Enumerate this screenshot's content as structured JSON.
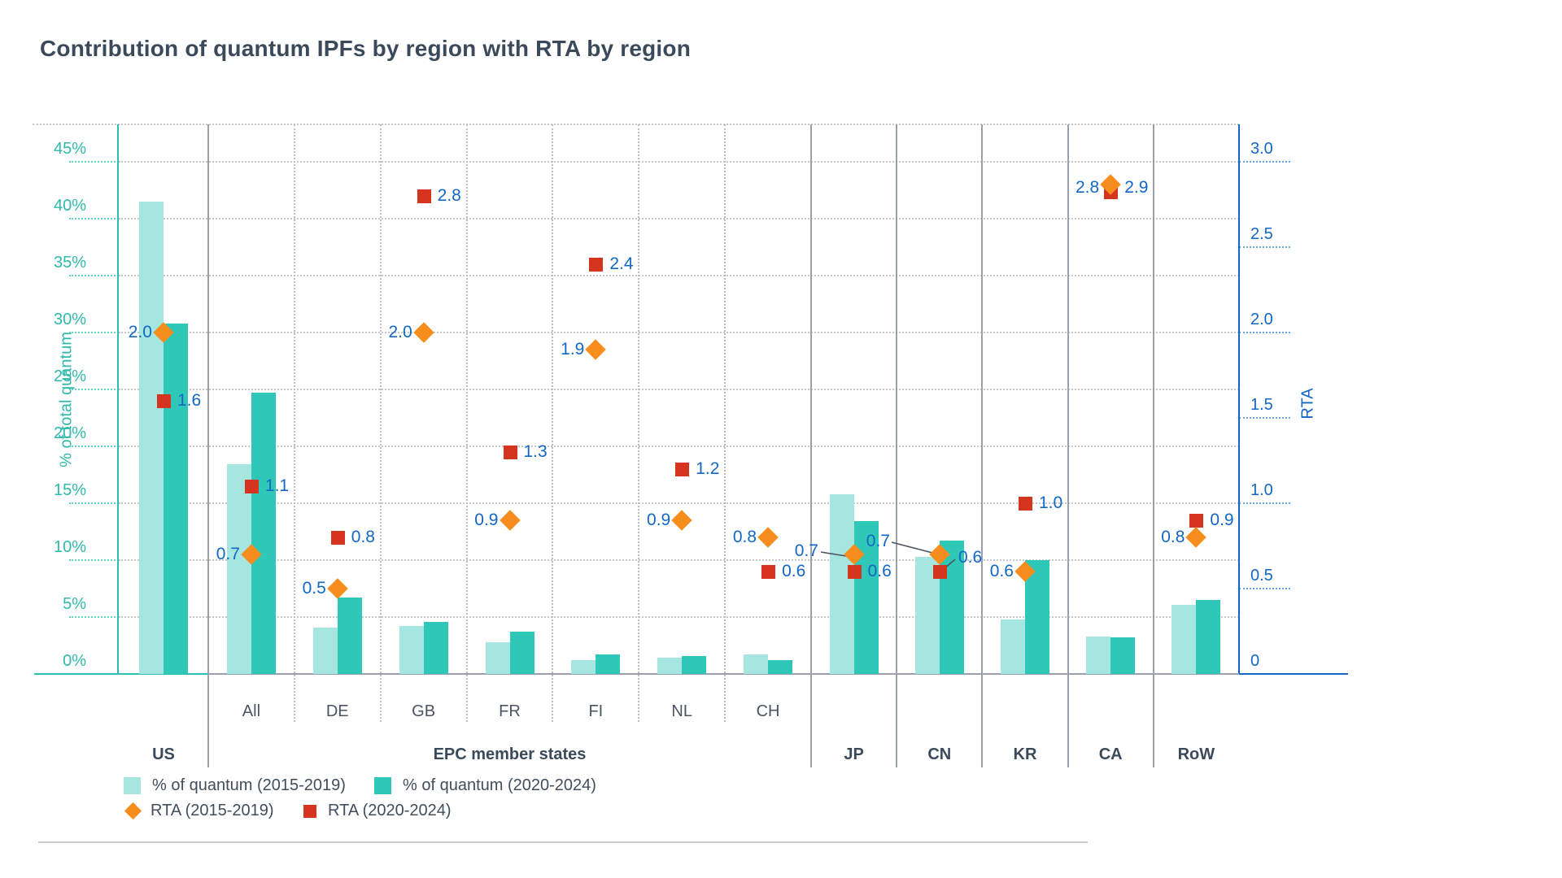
{
  "title": "Contribution of quantum IPFs by region with RTA by region",
  "left_axis": {
    "title": "% of total quantum",
    "ticks": [
      "45%",
      "40%",
      "35%",
      "30%",
      "25%",
      "20%",
      "15%",
      "10%",
      "5%",
      "0%"
    ]
  },
  "right_axis": {
    "title": "RTA",
    "ticks": [
      "3.0",
      "2.5",
      "2.0",
      "1.5",
      "1.0",
      "0.5",
      "0"
    ]
  },
  "legend": {
    "items": [
      {
        "label": "% of quantum (2015-2019)",
        "type": "bar-light"
      },
      {
        "label": "% of quantum (2020-2024)",
        "type": "bar-dark"
      },
      {
        "label": "RTA (2015-2019)",
        "type": "diamond"
      },
      {
        "label": "RTA (2020-2024)",
        "type": "square"
      }
    ]
  },
  "colors": {
    "bar_light": "#a5e6e0",
    "bar_dark": "#2fc7b8",
    "teal_axis": "#2bbfb1",
    "blue": "#1268c4",
    "orange": "#f68d1c",
    "red": "#d5341f",
    "text_dark": "#3b4a5a"
  },
  "chart_data": {
    "type": "bar",
    "title": "Contribution of quantum IPFs by region with RTA by region",
    "ylabel_left": "% of total quantum",
    "ylabel_right": "RTA",
    "ylim_left_pct": [
      0,
      45
    ],
    "ylim_right_rta": [
      0,
      3.0
    ],
    "grid": "dotted horizontal every 5% / 0.5 RTA",
    "legend_position": "bottom-left",
    "categories": [
      "US",
      "All",
      "DE",
      "GB",
      "FR",
      "FI",
      "NL",
      "CH",
      "JP",
      "CN",
      "KR",
      "CA",
      "RoW"
    ],
    "series": [
      {
        "name": "% of quantum (2015-2019)",
        "axis": "left",
        "values": [
          41.5,
          18.4,
          4.1,
          4.2,
          2.8,
          1.2,
          1.4,
          1.7,
          15.8,
          10.3,
          4.8,
          3.3,
          6.1
        ]
      },
      {
        "name": "% of quantum (2020-2024)",
        "axis": "left",
        "values": [
          30.8,
          24.7,
          6.7,
          4.6,
          3.7,
          1.7,
          1.6,
          1.2,
          13.4,
          11.7,
          10.0,
          3.2,
          6.5
        ]
      },
      {
        "name": "RTA (2015-2019)",
        "axis": "right",
        "values": [
          2.0,
          0.7,
          0.5,
          2.0,
          0.9,
          1.9,
          0.9,
          0.8,
          0.7,
          0.7,
          0.6,
          2.9,
          0.8
        ]
      },
      {
        "name": "RTA (2020-2024)",
        "axis": "right",
        "values": [
          1.6,
          1.1,
          0.8,
          2.8,
          1.3,
          2.4,
          1.2,
          0.6,
          0.6,
          0.6,
          1.0,
          2.8,
          0.9
        ]
      }
    ],
    "regions": [
      {
        "code": "US",
        "q15": 41.5,
        "q20": 30.8,
        "r15": 2.0,
        "r20": 1.6
      },
      {
        "code": "All",
        "q15": 18.4,
        "q20": 24.7,
        "r15": 0.7,
        "r20": 1.1
      },
      {
        "code": "DE",
        "q15": 4.1,
        "q20": 6.7,
        "r15": 0.5,
        "r20": 0.8
      },
      {
        "code": "GB",
        "q15": 4.2,
        "q20": 4.6,
        "r15": 2.0,
        "r20": 2.8
      },
      {
        "code": "FR",
        "q15": 2.8,
        "q20": 3.7,
        "r15": 0.9,
        "r20": 1.3
      },
      {
        "code": "FI",
        "q15": 1.2,
        "q20": 1.7,
        "r15": 1.9,
        "r20": 2.4
      },
      {
        "code": "NL",
        "q15": 1.4,
        "q20": 1.6,
        "r15": 0.9,
        "r20": 1.2
      },
      {
        "code": "CH",
        "q15": 1.7,
        "q20": 1.2,
        "r15": 0.8,
        "r20": 0.6
      },
      {
        "code": "JP",
        "q15": 15.8,
        "q20": 13.4,
        "r15": 0.7,
        "r20": 0.6,
        "d_callout": {
          "x": 1006,
          "y": 678,
          "line": [
            [
              1009,
              679
            ],
            [
              1040,
              684
            ]
          ]
        }
      },
      {
        "code": "CN",
        "q15": 10.3,
        "q20": 11.7,
        "r15": 0.7,
        "r20": 0.6,
        "d_callout": {
          "x": 1094,
          "y": 666,
          "line": [
            [
              1096,
              667
            ],
            [
              1146,
              680
            ]
          ]
        },
        "s_callout": {
          "x": 1178,
          "y": 686,
          "line": [
            [
              1160,
              700
            ],
            [
              1174,
              688
            ]
          ],
          "side": "left"
        }
      },
      {
        "code": "KR",
        "q15": 4.8,
        "q20": 10.0,
        "r15": 0.6,
        "r20": 1.0
      },
      {
        "code": "CA",
        "q15": 3.3,
        "q20": 3.2,
        "r15": 2.9,
        "r20": 2.8,
        "overlap": true,
        "d_side": "right",
        "s_side": "left"
      },
      {
        "code": "RoW",
        "q15": 6.1,
        "q20": 6.5,
        "r15": 0.8,
        "r20": 0.9
      }
    ],
    "groups": [
      {
        "label": "US",
        "span": [
          0,
          0
        ]
      },
      {
        "label": "EPC member states",
        "span": [
          1,
          7
        ],
        "col_labels": true
      },
      {
        "label": "JP",
        "span": [
          8,
          8
        ]
      },
      {
        "label": "CN",
        "span": [
          9,
          9
        ]
      },
      {
        "label": "KR",
        "span": [
          10,
          10
        ]
      },
      {
        "label": "CA",
        "span": [
          11,
          11
        ]
      },
      {
        "label": "RoW",
        "span": [
          12,
          12
        ]
      }
    ]
  }
}
